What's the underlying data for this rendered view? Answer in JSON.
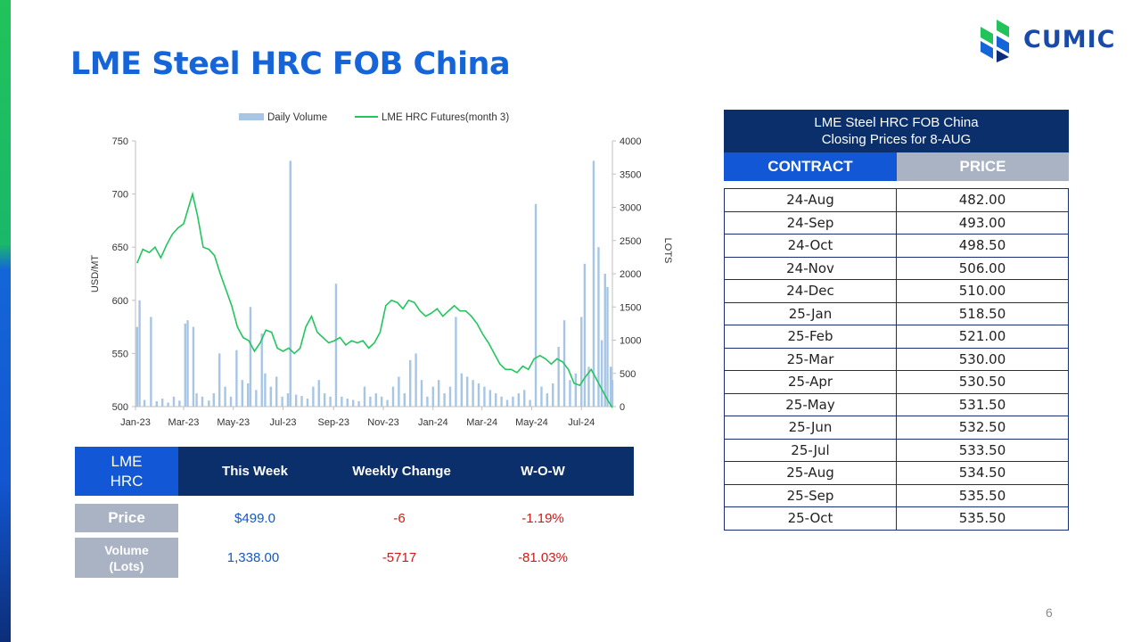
{
  "slide": {
    "title": "LME Steel HRC FOB China",
    "page_number": "6",
    "logo_text": "CUMIC"
  },
  "colors": {
    "title": "#1565d8",
    "header_dark": "#0a2f6b",
    "header_blue": "#1257d6",
    "header_gray": "#a9b3c4",
    "volume_bar": "#a7c6e6",
    "futures_line": "#22c55e",
    "positive_blue": "#1457c9",
    "negative_red": "#d01a1a"
  },
  "chart_data": {
    "type": "bar+line",
    "legend": [
      "Daily Volume",
      "LME HRC Futures(month 3)"
    ],
    "legend_position": "top",
    "ylabel_left": "USD/MT",
    "ylabel_right": "LOTS",
    "ylim_left": [
      500,
      750
    ],
    "yticks_left": [
      "500",
      "550",
      "600",
      "650",
      "700",
      "750"
    ],
    "ylim_right": [
      0,
      4000
    ],
    "yticks_right": [
      "0",
      "500",
      "1000",
      "1500",
      "2000",
      "2500",
      "3000",
      "3500",
      "4000"
    ],
    "x_ticks": [
      "Jan-23",
      "Mar-23",
      "May-23",
      "Jul-23",
      "Sep-23",
      "Nov-23",
      "Jan-24",
      "Mar-24",
      "May-24",
      "Jul-24"
    ],
    "x_start": "2023-01-01",
    "x_end": "2024-08-08",
    "series": [
      {
        "name": "LME HRC Futures(month 3)",
        "kind": "line",
        "points": [
          [
            "2023-01-03",
            635
          ],
          [
            "2023-01-10",
            648
          ],
          [
            "2023-01-18",
            645
          ],
          [
            "2023-01-25",
            650
          ],
          [
            "2023-02-01",
            640
          ],
          [
            "2023-02-08",
            652
          ],
          [
            "2023-02-15",
            662
          ],
          [
            "2023-02-22",
            668
          ],
          [
            "2023-03-01",
            672
          ],
          [
            "2023-03-08",
            690
          ],
          [
            "2023-03-12",
            700
          ],
          [
            "2023-03-18",
            680
          ],
          [
            "2023-03-25",
            650
          ],
          [
            "2023-04-01",
            648
          ],
          [
            "2023-04-08",
            642
          ],
          [
            "2023-04-15",
            625
          ],
          [
            "2023-04-22",
            610
          ],
          [
            "2023-04-29",
            595
          ],
          [
            "2023-05-06",
            575
          ],
          [
            "2023-05-13",
            565
          ],
          [
            "2023-05-20",
            562
          ],
          [
            "2023-05-27",
            552
          ],
          [
            "2023-06-03",
            560
          ],
          [
            "2023-06-10",
            572
          ],
          [
            "2023-06-17",
            570
          ],
          [
            "2023-06-24",
            555
          ],
          [
            "2023-07-01",
            552
          ],
          [
            "2023-07-08",
            555
          ],
          [
            "2023-07-15",
            550
          ],
          [
            "2023-07-22",
            555
          ],
          [
            "2023-07-29",
            575
          ],
          [
            "2023-08-05",
            585
          ],
          [
            "2023-08-12",
            570
          ],
          [
            "2023-08-19",
            565
          ],
          [
            "2023-08-26",
            560
          ],
          [
            "2023-09-02",
            562
          ],
          [
            "2023-09-09",
            565
          ],
          [
            "2023-09-16",
            558
          ],
          [
            "2023-09-23",
            562
          ],
          [
            "2023-09-30",
            560
          ],
          [
            "2023-10-07",
            562
          ],
          [
            "2023-10-14",
            555
          ],
          [
            "2023-10-21",
            560
          ],
          [
            "2023-10-28",
            570
          ],
          [
            "2023-11-04",
            595
          ],
          [
            "2023-11-11",
            600
          ],
          [
            "2023-11-18",
            598
          ],
          [
            "2023-11-25",
            592
          ],
          [
            "2023-12-02",
            600
          ],
          [
            "2023-12-09",
            598
          ],
          [
            "2023-12-16",
            590
          ],
          [
            "2023-12-23",
            585
          ],
          [
            "2023-12-30",
            588
          ],
          [
            "2024-01-06",
            592
          ],
          [
            "2024-01-13",
            585
          ],
          [
            "2024-01-20",
            590
          ],
          [
            "2024-01-27",
            595
          ],
          [
            "2024-02-03",
            590
          ],
          [
            "2024-02-10",
            590
          ],
          [
            "2024-02-17",
            585
          ],
          [
            "2024-02-24",
            578
          ],
          [
            "2024-03-02",
            568
          ],
          [
            "2024-03-09",
            560
          ],
          [
            "2024-03-16",
            550
          ],
          [
            "2024-03-23",
            540
          ],
          [
            "2024-03-30",
            535
          ],
          [
            "2024-04-06",
            535
          ],
          [
            "2024-04-13",
            532
          ],
          [
            "2024-04-20",
            538
          ],
          [
            "2024-04-27",
            535
          ],
          [
            "2024-05-04",
            545
          ],
          [
            "2024-05-11",
            548
          ],
          [
            "2024-05-18",
            545
          ],
          [
            "2024-05-25",
            540
          ],
          [
            "2024-06-01",
            545
          ],
          [
            "2024-06-08",
            542
          ],
          [
            "2024-06-15",
            535
          ],
          [
            "2024-06-22",
            522
          ],
          [
            "2024-06-29",
            520
          ],
          [
            "2024-07-06",
            528
          ],
          [
            "2024-07-13",
            535
          ],
          [
            "2024-07-20",
            525
          ],
          [
            "2024-07-27",
            515
          ],
          [
            "2024-08-03",
            505
          ],
          [
            "2024-08-08",
            499
          ]
        ]
      },
      {
        "name": "Daily Volume",
        "kind": "bar",
        "points": [
          [
            "2023-01-03",
            1200
          ],
          [
            "2023-01-06",
            1600
          ],
          [
            "2023-01-12",
            100
          ],
          [
            "2023-01-20",
            1350
          ],
          [
            "2023-01-27",
            80
          ],
          [
            "2023-02-03",
            120
          ],
          [
            "2023-02-10",
            60
          ],
          [
            "2023-02-17",
            150
          ],
          [
            "2023-02-24",
            90
          ],
          [
            "2023-03-03",
            1250
          ],
          [
            "2023-03-06",
            1300
          ],
          [
            "2023-03-13",
            1200
          ],
          [
            "2023-03-17",
            200
          ],
          [
            "2023-03-24",
            150
          ],
          [
            "2023-04-01",
            90
          ],
          [
            "2023-04-07",
            200
          ],
          [
            "2023-04-14",
            800
          ],
          [
            "2023-04-21",
            300
          ],
          [
            "2023-04-28",
            150
          ],
          [
            "2023-05-05",
            850
          ],
          [
            "2023-05-12",
            400
          ],
          [
            "2023-05-19",
            350
          ],
          [
            "2023-05-22",
            1500
          ],
          [
            "2023-05-29",
            250
          ],
          [
            "2023-06-05",
            1100
          ],
          [
            "2023-06-09",
            500
          ],
          [
            "2023-06-16",
            300
          ],
          [
            "2023-06-23",
            450
          ],
          [
            "2023-06-30",
            150
          ],
          [
            "2023-07-07",
            200
          ],
          [
            "2023-07-10",
            3700
          ],
          [
            "2023-07-17",
            180
          ],
          [
            "2023-07-24",
            160
          ],
          [
            "2023-07-31",
            120
          ],
          [
            "2023-08-07",
            300
          ],
          [
            "2023-08-14",
            400
          ],
          [
            "2023-08-21",
            200
          ],
          [
            "2023-08-28",
            150
          ],
          [
            "2023-09-04",
            1850
          ],
          [
            "2023-09-11",
            150
          ],
          [
            "2023-09-18",
            120
          ],
          [
            "2023-09-25",
            100
          ],
          [
            "2023-10-02",
            80
          ],
          [
            "2023-10-09",
            300
          ],
          [
            "2023-10-16",
            150
          ],
          [
            "2023-10-23",
            200
          ],
          [
            "2023-10-30",
            150
          ],
          [
            "2023-11-06",
            100
          ],
          [
            "2023-11-13",
            300
          ],
          [
            "2023-11-20",
            450
          ],
          [
            "2023-11-27",
            200
          ],
          [
            "2023-12-04",
            700
          ],
          [
            "2023-12-11",
            800
          ],
          [
            "2023-12-18",
            400
          ],
          [
            "2023-12-25",
            150
          ],
          [
            "2024-01-01",
            300
          ],
          [
            "2024-01-08",
            400
          ],
          [
            "2024-01-15",
            200
          ],
          [
            "2024-01-22",
            300
          ],
          [
            "2024-01-29",
            1350
          ],
          [
            "2024-02-05",
            500
          ],
          [
            "2024-02-12",
            450
          ],
          [
            "2024-02-19",
            400
          ],
          [
            "2024-02-26",
            350
          ],
          [
            "2024-03-04",
            300
          ],
          [
            "2024-03-11",
            250
          ],
          [
            "2024-03-18",
            200
          ],
          [
            "2024-03-25",
            150
          ],
          [
            "2024-04-01",
            100
          ],
          [
            "2024-04-08",
            150
          ],
          [
            "2024-04-15",
            200
          ],
          [
            "2024-04-22",
            250
          ],
          [
            "2024-04-29",
            100
          ],
          [
            "2024-05-06",
            3050
          ],
          [
            "2024-05-13",
            300
          ],
          [
            "2024-05-20",
            200
          ],
          [
            "2024-05-27",
            350
          ],
          [
            "2024-06-03",
            900
          ],
          [
            "2024-06-10",
            1300
          ],
          [
            "2024-06-17",
            400
          ],
          [
            "2024-06-24",
            500
          ],
          [
            "2024-07-01",
            1350
          ],
          [
            "2024-07-05",
            2150
          ],
          [
            "2024-07-10",
            600
          ],
          [
            "2024-07-16",
            3700
          ],
          [
            "2024-07-22",
            2400
          ],
          [
            "2024-07-26",
            1000
          ],
          [
            "2024-07-30",
            2000
          ],
          [
            "2024-08-02",
            1800
          ],
          [
            "2024-08-06",
            600
          ],
          [
            "2024-08-08",
            400
          ]
        ]
      }
    ]
  },
  "summary": {
    "corner_label": "LME HRC",
    "headers": [
      "This Week",
      "Weekly Change",
      "W-O-W"
    ],
    "rows": [
      {
        "label": "Price",
        "this_week": "$499.0",
        "weekly_change": "-6",
        "wow": "-1.19%"
      },
      {
        "label": "Volume (Lots)",
        "this_week": "1,338.00",
        "weekly_change": "-5717",
        "wow": "-81.03%"
      }
    ]
  },
  "closing_prices": {
    "title_line1": "LME Steel HRC FOB China",
    "title_line2": "Closing Prices for 8-AUG",
    "col_contract": "CONTRACT",
    "col_price": "PRICE",
    "rows": [
      [
        "24-Aug",
        "482.00"
      ],
      [
        "24-Sep",
        "493.00"
      ],
      [
        "24-Oct",
        "498.50"
      ],
      [
        "24-Nov",
        "506.00"
      ],
      [
        "24-Dec",
        "510.00"
      ],
      [
        "25-Jan",
        "518.50"
      ],
      [
        "25-Feb",
        "521.00"
      ],
      [
        "25-Mar",
        "530.00"
      ],
      [
        "25-Apr",
        "530.50"
      ],
      [
        "25-May",
        "531.50"
      ],
      [
        "25-Jun",
        "532.50"
      ],
      [
        "25-Jul",
        "533.50"
      ],
      [
        "25-Aug",
        "534.50"
      ],
      [
        "25-Sep",
        "535.50"
      ],
      [
        "25-Oct",
        "535.50"
      ]
    ]
  }
}
